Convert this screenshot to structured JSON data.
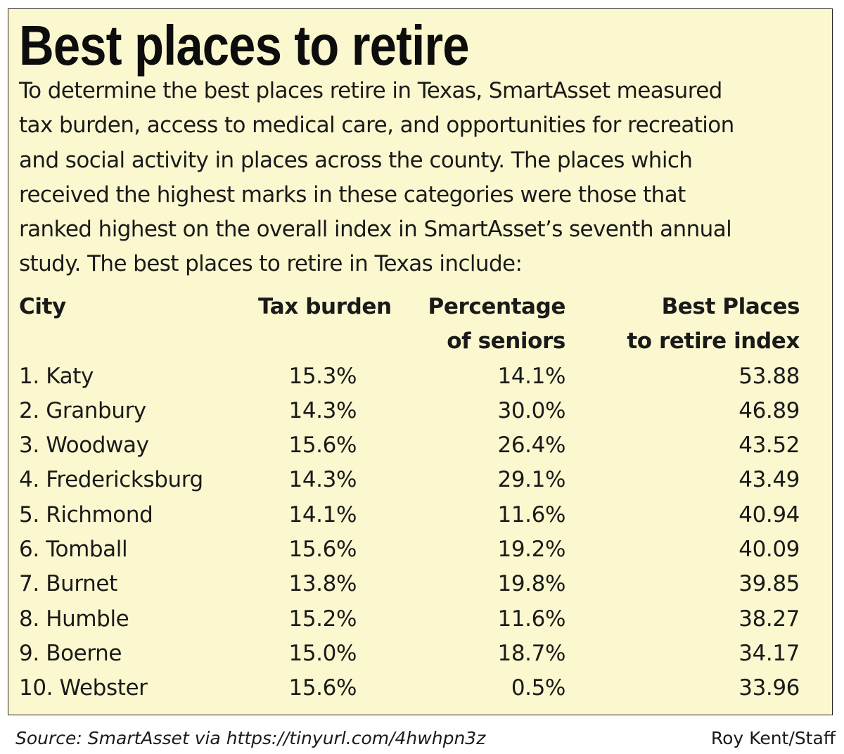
{
  "header": {
    "title": "Best places to retire",
    "intro_lines": [
      "To determine the best places retire in Texas, SmartAsset measured",
      "tax burden, access to medical care, and opportunities for recreation",
      "and social activity in places across the county. The places which",
      "received the highest marks in these categories were those that",
      "ranked highest on the overall index in SmartAsset’s seventh annual",
      "study. The best places to retire in Texas include:"
    ]
  },
  "chart_data": {
    "type": "table",
    "title": "Best places to retire",
    "columns": [
      {
        "line1": "City",
        "line2": ""
      },
      {
        "line1": "Tax burden",
        "line2": ""
      },
      {
        "line1": "Percentage",
        "line2": "of seniors"
      },
      {
        "line1": "Best Places",
        "line2": "to retire index"
      }
    ],
    "rows": [
      [
        "1. Katy",
        "15.3%",
        "14.1%",
        "53.88"
      ],
      [
        "2. Granbury",
        "14.3%",
        "30.0%",
        "46.89"
      ],
      [
        "3. Woodway",
        "15.6%",
        "26.4%",
        "43.52"
      ],
      [
        "4. Fredericksburg",
        "14.3%",
        "29.1%",
        "43.49"
      ],
      [
        "5. Richmond",
        "14.1%",
        "11.6%",
        "40.94"
      ],
      [
        "6. Tomball",
        "15.6%",
        "19.2%",
        "40.09"
      ],
      [
        "7. Burnet",
        "13.8%",
        "19.8%",
        "39.85"
      ],
      [
        "8. Humble",
        "15.2%",
        "11.6%",
        "38.27"
      ],
      [
        "9. Boerne",
        "15.0%",
        "18.7%",
        "34.17"
      ],
      [
        "10. Webster",
        "15.6%",
        "0.5%",
        "33.96"
      ]
    ]
  },
  "footer": {
    "source": "Source: SmartAsset via https://tinyurl.com/4hwhpn3z",
    "credit": "Roy Kent/Staff"
  },
  "colors": {
    "panel_background": "#fbf8cf",
    "panel_border": "#222222",
    "text": "#1a1a1a"
  }
}
